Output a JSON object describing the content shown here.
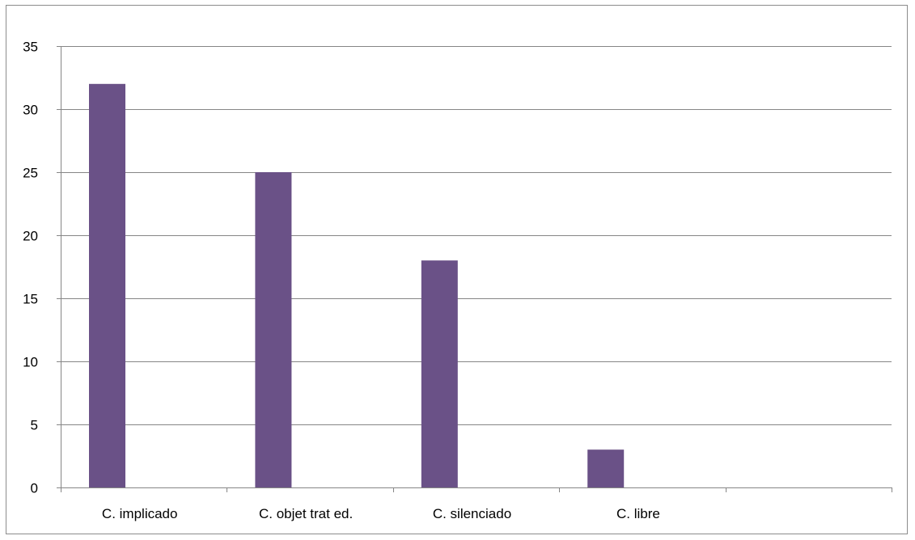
{
  "chart_data": {
    "type": "bar",
    "title": "",
    "xlabel": "",
    "ylabel": "",
    "categories": [
      "C. implicado",
      "C. objet trat ed.",
      "C. silenciado",
      "C. libre",
      ""
    ],
    "series": [
      {
        "values": [
          32,
          25,
          18,
          3,
          null
        ]
      }
    ],
    "ylim": [
      0,
      35
    ],
    "yticks": [
      0,
      5,
      10,
      15,
      20,
      25,
      30,
      35
    ],
    "grid": true,
    "legend": "none",
    "colors": {
      "bar": "#6a5187",
      "grid": "#868686",
      "axis": "#868686",
      "text": "#000000"
    }
  }
}
